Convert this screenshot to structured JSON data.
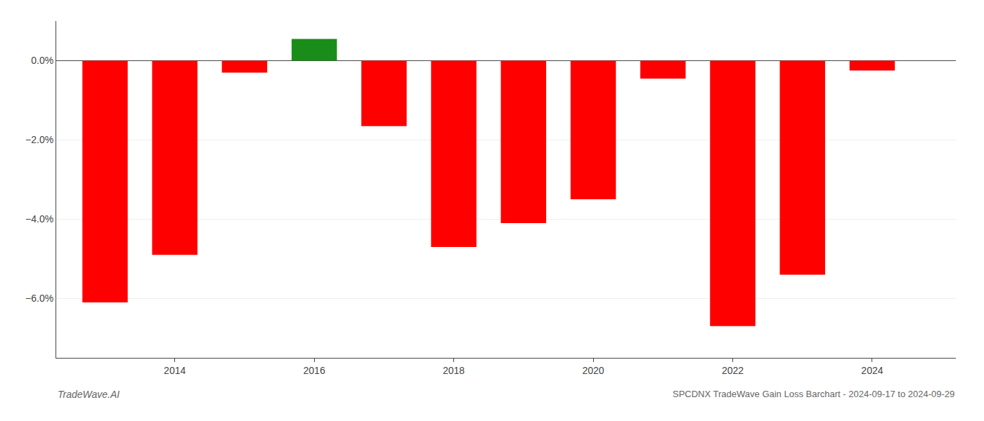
{
  "chart_data": {
    "type": "bar",
    "title": "SPCDNX TradeWave Gain Loss Barchart - 2024-09-17 to 2024-09-29",
    "annotations": [
      "TradeWave.AI"
    ],
    "x": [
      2013,
      2014,
      2015,
      2016,
      2017,
      2018,
      2019,
      2020,
      2021,
      2022,
      2023,
      2024
    ],
    "values": [
      -6.1,
      -4.9,
      -0.3,
      0.55,
      -1.65,
      -4.7,
      -4.1,
      -3.5,
      -0.45,
      -6.7,
      -5.4,
      -0.25
    ],
    "colors": [
      "#ff0000",
      "#ff0000",
      "#ff0000",
      "#1a8c1a",
      "#ff0000",
      "#ff0000",
      "#ff0000",
      "#ff0000",
      "#ff0000",
      "#ff0000",
      "#ff0000",
      "#ff0000"
    ],
    "xlim": [
      2012.3,
      2025.2
    ],
    "xticks": [
      2014,
      2016,
      2018,
      2020,
      2022,
      2024
    ],
    "ylim": [
      -7.5,
      1.0
    ],
    "yticks": [
      {
        "value": 0.0,
        "label": "0.0%"
      },
      {
        "value": -2.0,
        "label": "−2.0%"
      },
      {
        "value": -4.0,
        "label": "−4.0%"
      },
      {
        "value": -6.0,
        "label": "−6.0%"
      }
    ],
    "grid": true
  }
}
